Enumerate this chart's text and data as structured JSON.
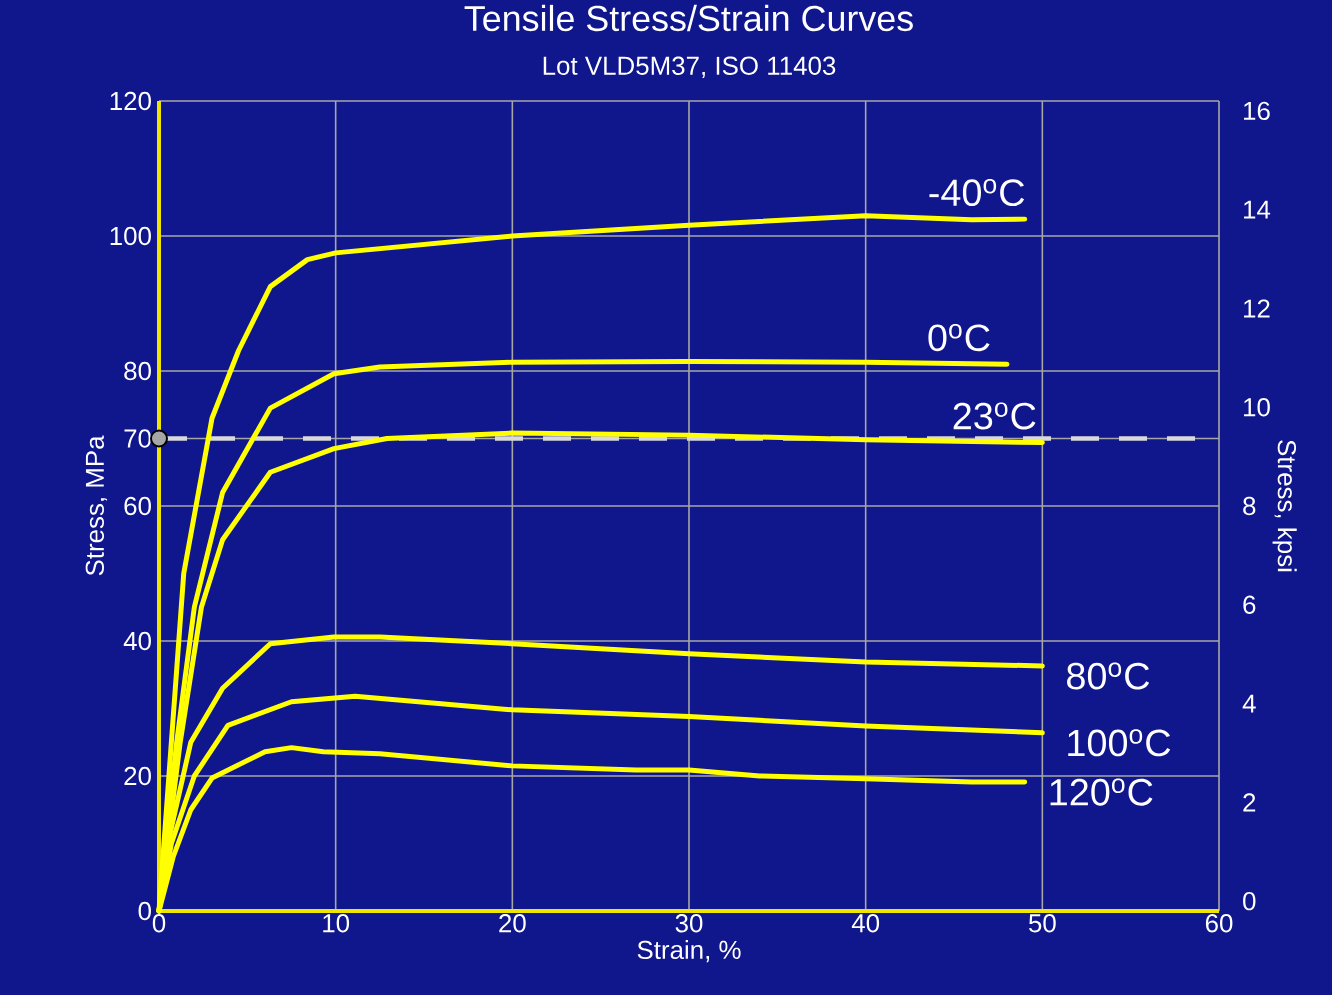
{
  "chart_data": {
    "type": "line",
    "title": "Tensile Stress/Strain Curves",
    "subtitle": "Lot VLD5M37,  ISO 11403",
    "xlabel": "Strain, %",
    "ylabel": "Stress, MPa",
    "y2label": "Stress, kpsi",
    "xlim": [
      0,
      60
    ],
    "xticks": [
      0,
      10,
      20,
      30,
      40,
      50,
      60
    ],
    "ylim": [
      0,
      120
    ],
    "yticks": [
      0,
      20,
      40,
      60,
      70,
      80,
      100,
      120
    ],
    "y2lim": [
      -0.2,
      16.2
    ],
    "y2ticks": [
      0,
      2,
      4,
      6,
      8,
      10,
      12,
      14,
      16
    ],
    "grid": true,
    "ref_lines": [
      {
        "axis": "y",
        "value": 70,
        "color": "#d9d9d9",
        "line_style": "dashed"
      }
    ],
    "series": [
      {
        "name": "-40$^{o}$C",
        "color": "#ffff00",
        "x": [
          0,
          0.7,
          1.4,
          3.0,
          4.5,
          6.3,
          8.4,
          10,
          20,
          30,
          40,
          46,
          49
        ],
        "values": [
          0,
          25,
          50,
          73,
          83,
          92.5,
          96.5,
          97.5,
          100,
          101.6,
          103,
          102.4,
          102.5
        ]
      },
      {
        "name": "0$^{o}$C",
        "color": "#ffff00",
        "x": [
          0,
          1.0,
          2.0,
          3.6,
          6.3,
          9.9,
          12.5,
          20,
          30,
          40,
          48
        ],
        "values": [
          0,
          25,
          45,
          62,
          74.5,
          79.6,
          80.6,
          81.3,
          81.4,
          81.3,
          81
        ]
      },
      {
        "name": "23$^{o}$C",
        "color": "#ffff00",
        "x": [
          0,
          1.2,
          2.4,
          3.6,
          6.3,
          9.9,
          12.9,
          20,
          30,
          40,
          50
        ],
        "values": [
          0,
          25,
          45,
          55,
          65,
          68.5,
          70,
          70.8,
          70.5,
          69.8,
          69.4
        ]
      },
      {
        "name": "80$^{o}$C",
        "color": "#ffff00",
        "x": [
          0,
          0.5,
          1.8,
          3.6,
          6.3,
          9.9,
          12.5,
          20,
          30,
          40,
          50
        ],
        "values": [
          0,
          10,
          25,
          33,
          39.6,
          40.6,
          40.6,
          39.6,
          38.1,
          36.9,
          36.3
        ]
      },
      {
        "name": "100$^{o}$C",
        "color": "#ffff00",
        "x": [
          0,
          0.7,
          2.0,
          3.9,
          7.5,
          11.1,
          20,
          30,
          40,
          50
        ],
        "values": [
          0,
          10,
          20,
          27.5,
          31,
          31.8,
          29.8,
          28.8,
          27.4,
          26.4
        ]
      },
      {
        "type": "scatter",
        "color": "#a6a6a6",
        "x": [
          0
        ],
        "values": [
          70
        ]
      },
      {
        "name": "120$^{o}$C",
        "color": "#ffff00",
        "x": [
          0,
          0.8,
          1.8,
          3.0,
          6.0,
          7.5,
          9.3,
          12.5,
          20,
          27,
          30,
          34,
          40,
          46,
          49
        ],
        "values": [
          0,
          8,
          15,
          19.7,
          23.6,
          24.2,
          23.6,
          23.3,
          21.5,
          20.9,
          20.9,
          20,
          19.6,
          19.1,
          19.1
        ]
      }
    ]
  }
}
